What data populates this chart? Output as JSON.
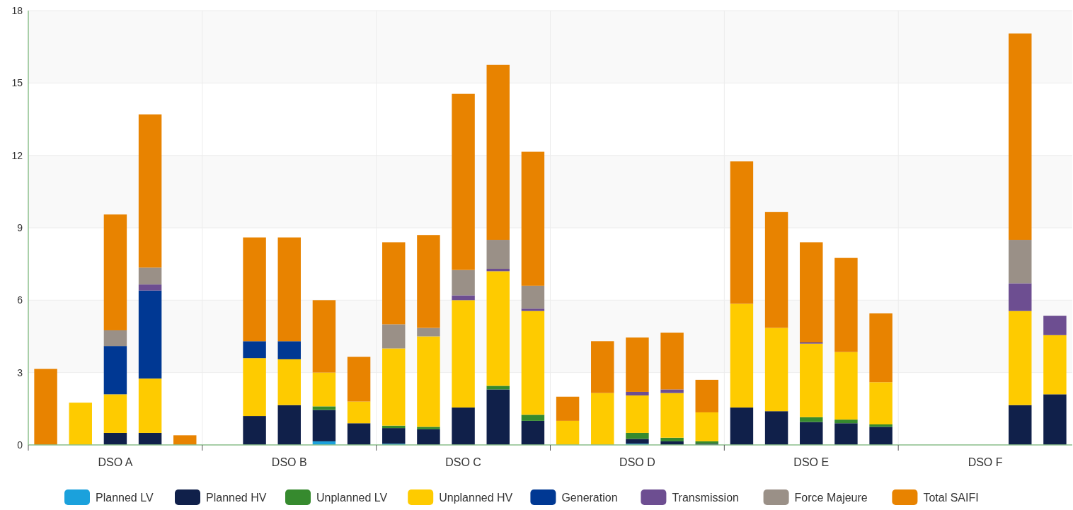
{
  "chart_data": {
    "type": "bar",
    "stacked": true,
    "categories": [
      null,
      null,
      "DSO A",
      null,
      null,
      null,
      null,
      "DSO B",
      null,
      null,
      null,
      null,
      "DSO C",
      null,
      null,
      null,
      null,
      "DSO D",
      null,
      null,
      null,
      null,
      "DSO E",
      null,
      null,
      null,
      null,
      "DSO F",
      null,
      null
    ],
    "series": [
      {
        "name": "Planned LV",
        "color": "#1ba1dc",
        "values": [
          null,
          null,
          null,
          null,
          null,
          null,
          null,
          null,
          0.15,
          null,
          0.05,
          null,
          null,
          null,
          null,
          null,
          null,
          0.05,
          null,
          null,
          null,
          null,
          null,
          null,
          null,
          null,
          null,
          null,
          null,
          null
        ]
      },
      {
        "name": "Planned HV",
        "color": "#10204a",
        "values": [
          null,
          null,
          0.5,
          0.5,
          null,
          null,
          1.2,
          1.65,
          1.3,
          0.9,
          0.65,
          0.65,
          1.55,
          2.3,
          1.0,
          null,
          null,
          0.2,
          0.15,
          0.05,
          1.55,
          1.4,
          0.95,
          0.9,
          0.75,
          null,
          null,
          null,
          1.65,
          2.1
        ]
      },
      {
        "name": "Unplanned LV",
        "color": "#368a2e",
        "values": [
          null,
          null,
          null,
          null,
          null,
          null,
          null,
          null,
          0.15,
          null,
          0.1,
          0.1,
          null,
          0.15,
          0.25,
          null,
          null,
          0.25,
          0.15,
          0.1,
          null,
          null,
          0.2,
          0.15,
          0.1,
          null,
          null,
          null,
          null,
          null
        ]
      },
      {
        "name": "Unplanned HV",
        "color": "#fecb00",
        "values": [
          null,
          1.75,
          1.6,
          2.25,
          null,
          null,
          2.4,
          1.9,
          1.4,
          0.9,
          3.2,
          3.75,
          4.45,
          4.75,
          4.3,
          1.0,
          2.15,
          1.55,
          1.85,
          1.2,
          4.3,
          3.45,
          3.05,
          2.8,
          1.75,
          null,
          null,
          null,
          3.9,
          2.45
        ]
      },
      {
        "name": "Generation",
        "color": "#003893",
        "values": [
          null,
          null,
          2.0,
          3.65,
          null,
          null,
          0.7,
          0.75,
          null,
          null,
          null,
          null,
          null,
          null,
          null,
          null,
          null,
          null,
          null,
          null,
          null,
          null,
          null,
          null,
          null,
          null,
          null,
          null,
          null,
          null
        ]
      },
      {
        "name": "Transmission",
        "color": "#6d4e91",
        "values": [
          null,
          null,
          null,
          0.25,
          null,
          null,
          null,
          null,
          null,
          null,
          null,
          null,
          0.2,
          0.1,
          0.1,
          null,
          null,
          0.15,
          0.15,
          null,
          null,
          null,
          0.05,
          null,
          null,
          null,
          null,
          null,
          1.15,
          0.8
        ]
      },
      {
        "name": "Force Majeure",
        "color": "#9a9087",
        "values": [
          null,
          null,
          0.65,
          0.7,
          null,
          null,
          null,
          null,
          null,
          null,
          1.0,
          0.35,
          1.05,
          1.2,
          0.95,
          null,
          null,
          null,
          null,
          null,
          null,
          null,
          null,
          null,
          null,
          null,
          null,
          null,
          1.8,
          null
        ]
      },
      {
        "name": "Total SAIFI",
        "color": "#e88300",
        "values": [
          3.15,
          null,
          4.8,
          6.35,
          0.4,
          null,
          4.3,
          4.3,
          3.0,
          1.85,
          3.4,
          3.85,
          7.3,
          7.25,
          5.55,
          1.0,
          2.15,
          2.25,
          2.35,
          1.35,
          5.9,
          4.8,
          4.15,
          3.9,
          2.85,
          null,
          null,
          null,
          8.55,
          null
        ]
      }
    ],
    "ylim": [
      0,
      18
    ],
    "yticks": [
      0,
      3,
      6,
      9,
      12,
      15,
      18
    ],
    "grid": true,
    "legend": "bottom"
  }
}
